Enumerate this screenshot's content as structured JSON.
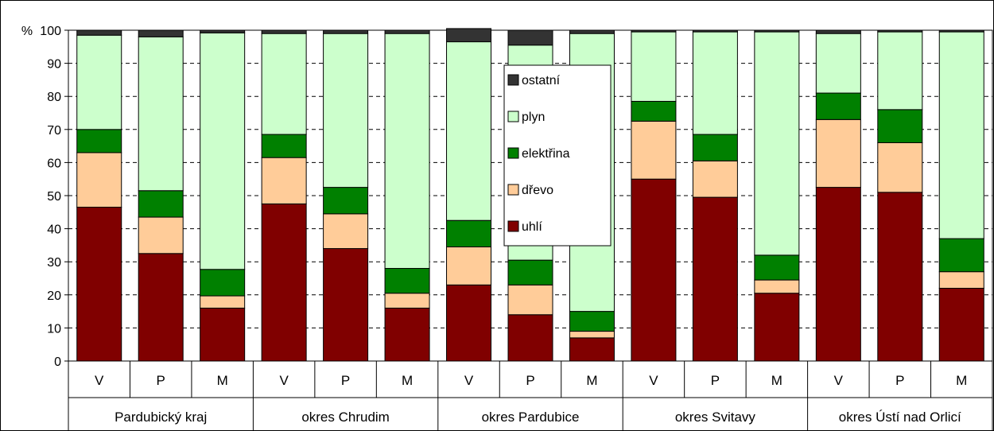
{
  "chart_data": {
    "type": "bar",
    "stacked": true,
    "ylabel": "%",
    "ylim": [
      0,
      100
    ],
    "ytick_step": 10,
    "grid": true,
    "legend_position": "center",
    "categories": [
      "V",
      "P",
      "M",
      "V",
      "P",
      "M",
      "V",
      "P",
      "M",
      "V",
      "P",
      "M",
      "V",
      "P",
      "M"
    ],
    "groups": [
      "Pardubický kraj",
      "okres Chrudim",
      "okres Pardubice",
      "okres Svitavy",
      "okres Ústí nad Orlicí"
    ],
    "series": [
      {
        "name": "uhlí",
        "color": "#800000",
        "values": [
          46.5,
          32.5,
          16,
          47.5,
          34,
          16,
          23,
          14,
          7,
          55,
          49.5,
          20.5,
          52.5,
          51,
          22
        ]
      },
      {
        "name": "dřevo",
        "color": "#FFCC99",
        "values": [
          16.5,
          11,
          3.7,
          14,
          10.5,
          4.5,
          11.5,
          9,
          2,
          17.5,
          11,
          4,
          20.5,
          15,
          5
        ]
      },
      {
        "name": "elektřina",
        "color": "#008000",
        "values": [
          7,
          8,
          8,
          7,
          8,
          7.5,
          8,
          7.5,
          6,
          6,
          8,
          7.5,
          8,
          10,
          10
        ]
      },
      {
        "name": "plyn",
        "color": "#CCFFCC",
        "values": [
          28.5,
          46.5,
          71.5,
          30.5,
          46.5,
          71,
          54,
          65,
          84,
          21,
          31,
          67.5,
          18,
          23.5,
          62.5
        ]
      },
      {
        "name": "ostatní",
        "color": "#333333",
        "values": [
          1.5,
          2,
          0.8,
          1,
          1,
          1,
          4,
          4.5,
          1,
          0.5,
          0.5,
          0.5,
          1,
          0.5,
          0.5
        ]
      }
    ]
  }
}
